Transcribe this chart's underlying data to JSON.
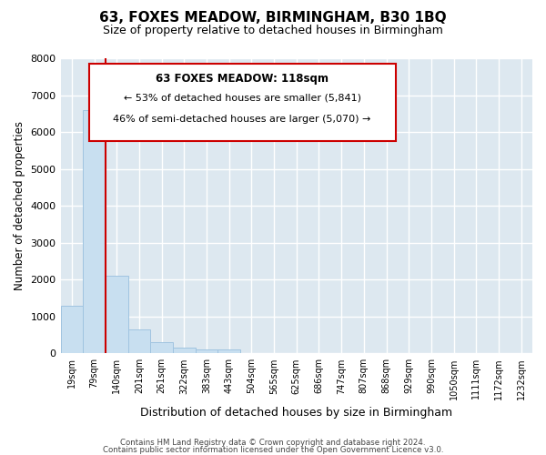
{
  "title": "63, FOXES MEADOW, BIRMINGHAM, B30 1BQ",
  "subtitle": "Size of property relative to detached houses in Birmingham",
  "xlabel": "Distribution of detached houses by size in Birmingham",
  "ylabel": "Number of detached properties",
  "bin_labels": [
    "19sqm",
    "79sqm",
    "140sqm",
    "201sqm",
    "261sqm",
    "322sqm",
    "383sqm",
    "443sqm",
    "504sqm",
    "565sqm",
    "625sqm",
    "686sqm",
    "747sqm",
    "807sqm",
    "868sqm",
    "929sqm",
    "990sqm",
    "1050sqm",
    "1111sqm",
    "1172sqm",
    "1232sqm"
  ],
  "bar_values": [
    1300,
    6600,
    2100,
    650,
    300,
    150,
    100,
    100,
    0,
    0,
    0,
    0,
    0,
    0,
    0,
    0,
    0,
    0,
    0,
    0,
    0
  ],
  "bar_color": "#c8dff0",
  "bar_edge_color": "#a0c4e0",
  "vline_x_index": 2,
  "vline_color": "#cc0000",
  "ylim": [
    0,
    8000
  ],
  "yticks": [
    0,
    1000,
    2000,
    3000,
    4000,
    5000,
    6000,
    7000,
    8000
  ],
  "annotation_title": "63 FOXES MEADOW: 118sqm",
  "annotation_line1": "← 53% of detached houses are smaller (5,841)",
  "annotation_line2": "46% of semi-detached houses are larger (5,070) →",
  "annotation_box_edge": "#cc0000",
  "footer1": "Contains HM Land Registry data © Crown copyright and database right 2024.",
  "footer2": "Contains public sector information licensed under the Open Government Licence v3.0.",
  "background_color": "#ffffff",
  "plot_bg_color": "#dde8f0"
}
